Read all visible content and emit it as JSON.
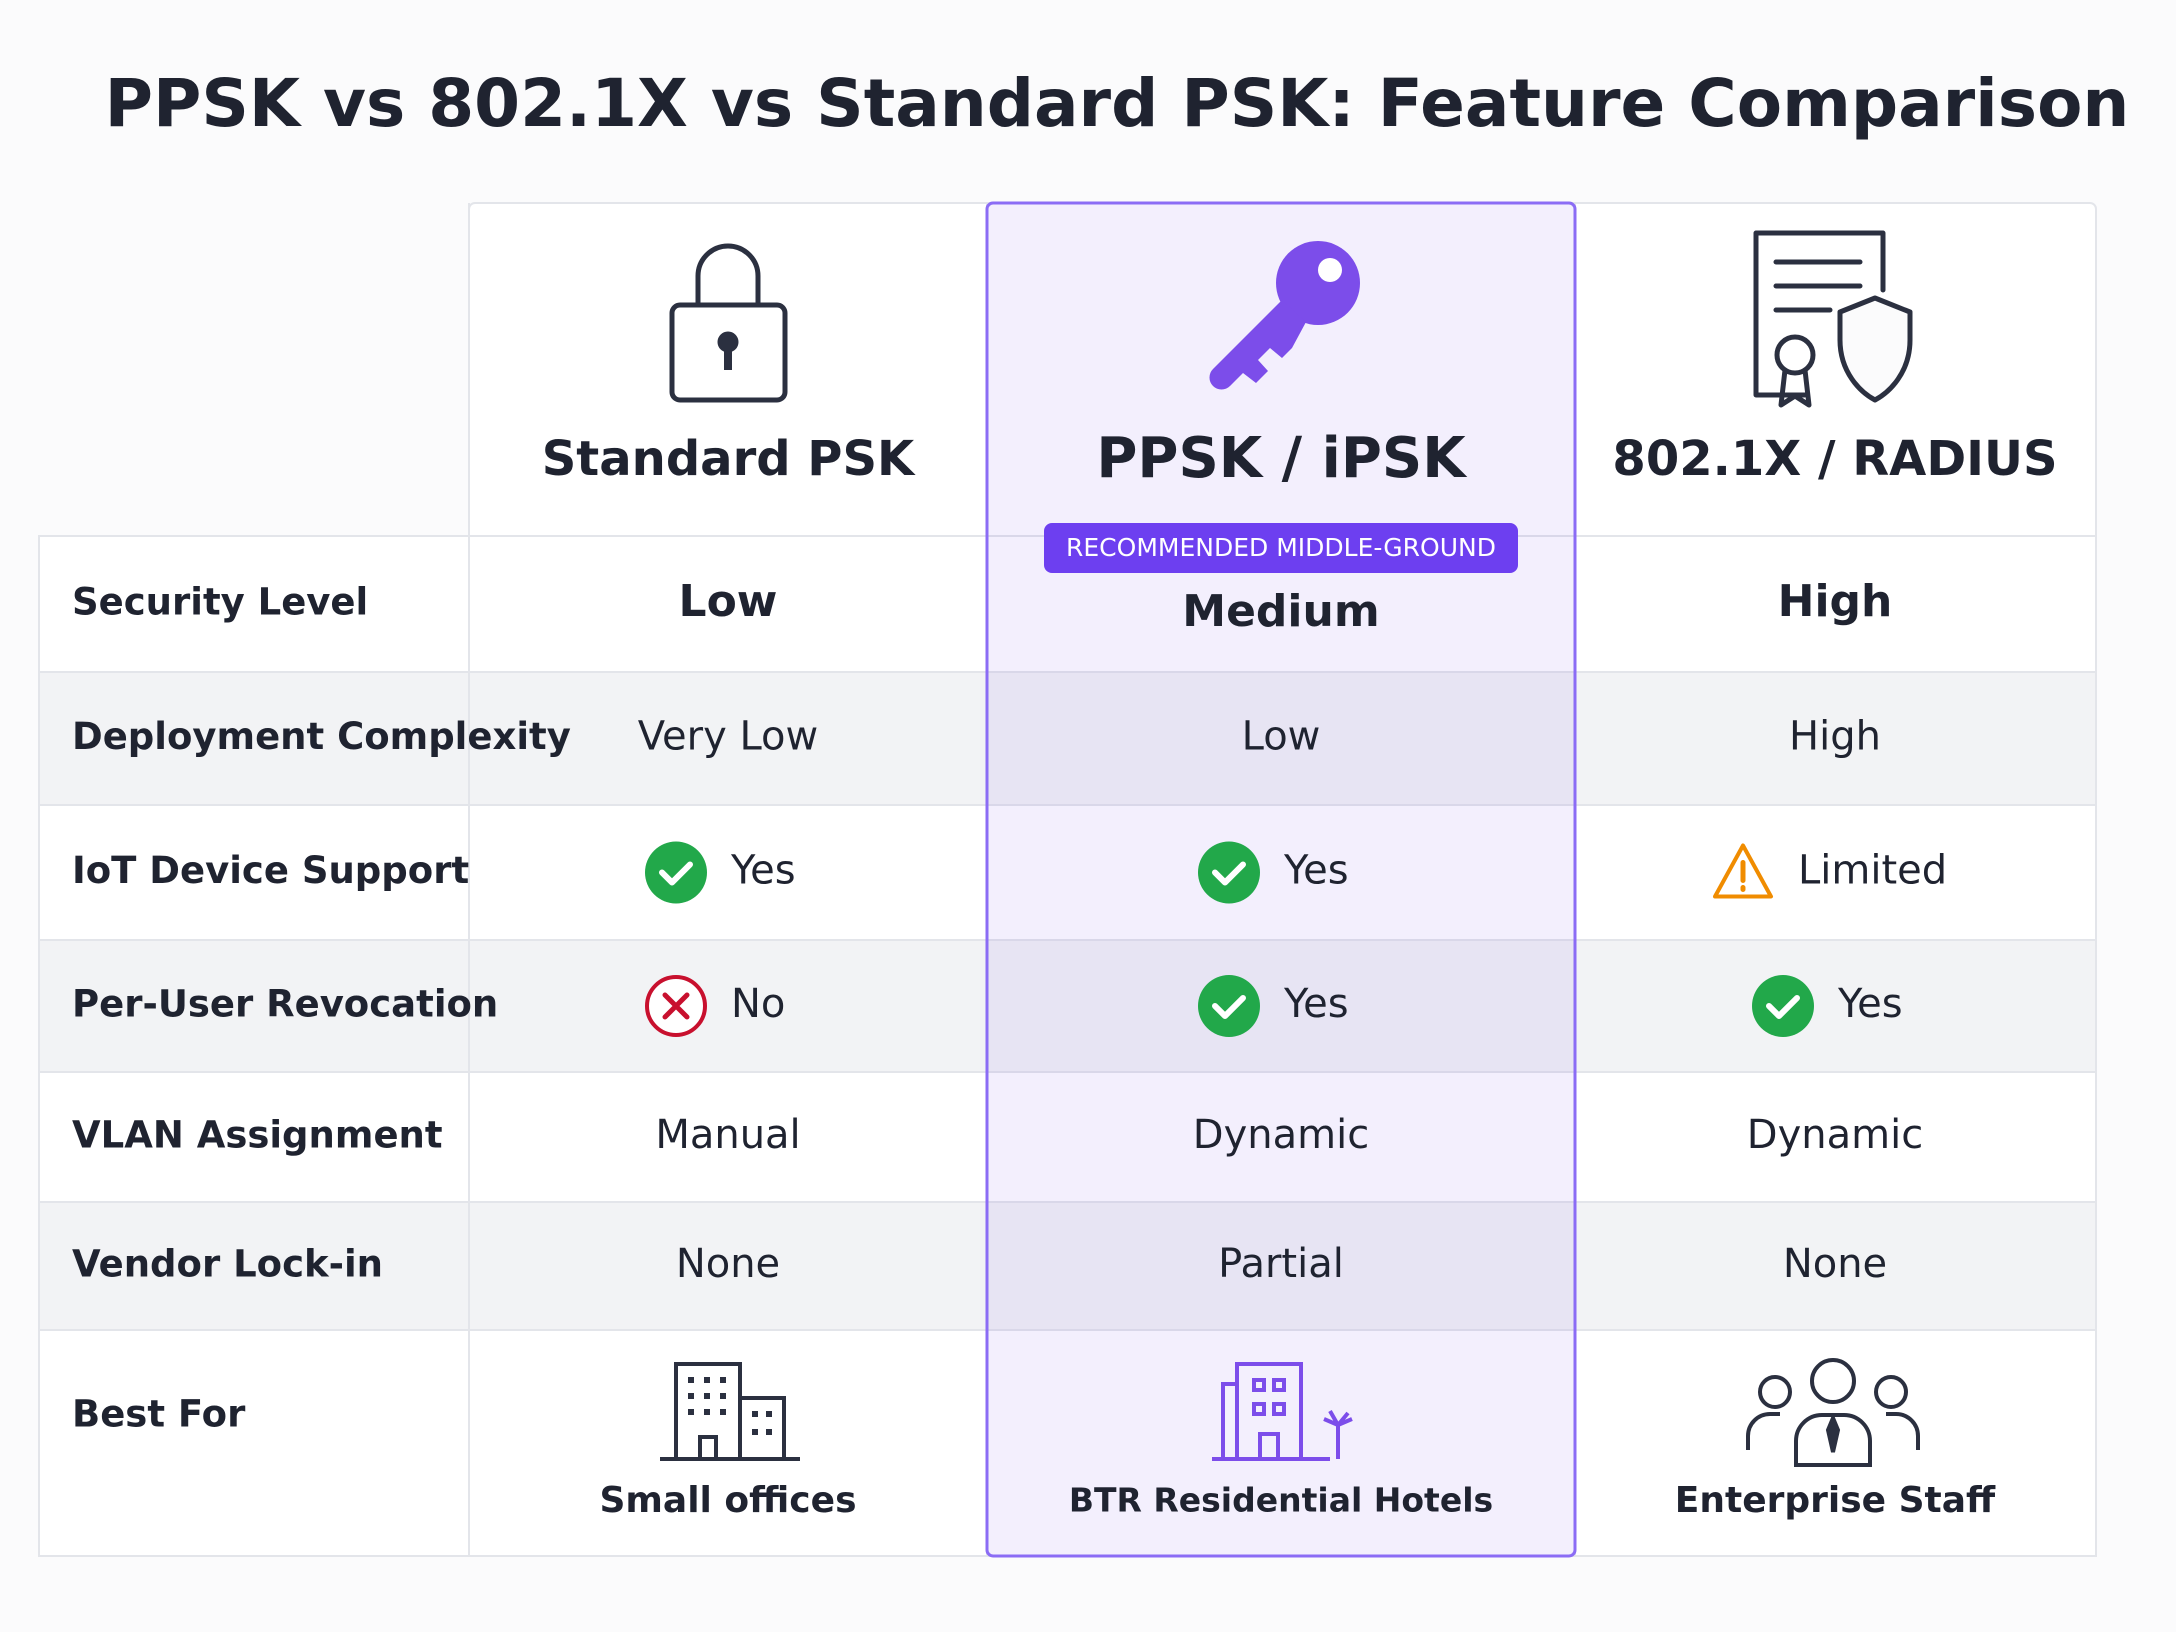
{
  "title": "PPSK vs 802.1X vs Standard PSK: Feature Comparison",
  "columns": [
    {
      "name": "Standard PSK"
    },
    {
      "name": "PPSK / iPSK",
      "badge": "RECOMMENDED MIDDLE-GROUND"
    },
    {
      "name": "802.1X / RADIUS"
    }
  ],
  "rows": [
    {
      "label": "Security Level",
      "cells": [
        "Low",
        "Medium",
        "High"
      ]
    },
    {
      "label": "Deployment Complexity",
      "cells": [
        "Very Low",
        "Low",
        "High"
      ]
    },
    {
      "label": "IoT Device Support",
      "cells": [
        "Yes",
        "Yes",
        "Limited"
      ]
    },
    {
      "label": "Per-User Revocation",
      "cells": [
        "No",
        "Yes",
        "Yes"
      ]
    },
    {
      "label": "VLAN Assignment",
      "cells": [
        "Manual",
        "Dynamic",
        "Dynamic"
      ]
    },
    {
      "label": "Vendor Lock-in",
      "cells": [
        "None",
        "Partial",
        "None"
      ]
    }
  ],
  "best_for": {
    "label": "Best For",
    "cells": [
      "Small offices",
      "BTR Residential Hotels",
      "Enterprise Staff"
    ]
  }
}
